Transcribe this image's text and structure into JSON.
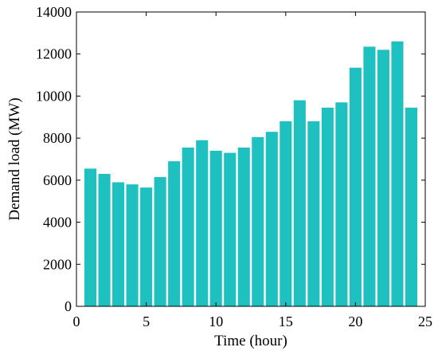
{
  "chart_data": {
    "type": "bar",
    "title": "",
    "xlabel": "Time (hour)",
    "ylabel": "Demand load (MW)",
    "x": [
      1,
      2,
      3,
      4,
      5,
      6,
      7,
      8,
      9,
      10,
      11,
      12,
      13,
      14,
      15,
      16,
      17,
      18,
      19,
      20,
      21,
      22,
      23,
      24
    ],
    "values": [
      6550,
      6300,
      5900,
      5800,
      5650,
      6150,
      6900,
      7550,
      7900,
      7400,
      7300,
      7550,
      8050,
      8300,
      8800,
      9800,
      8800,
      9450,
      9700,
      11350,
      12350,
      12200,
      12600,
      9450
    ],
    "xlim": [
      0,
      25
    ],
    "ylim": [
      0,
      14000
    ],
    "xticks": [
      0,
      5,
      10,
      15,
      20,
      25
    ],
    "yticks": [
      0,
      2000,
      4000,
      6000,
      8000,
      10000,
      12000,
      14000
    ],
    "bar_color": "#1fc0c0",
    "grid": false,
    "legend": "none"
  }
}
